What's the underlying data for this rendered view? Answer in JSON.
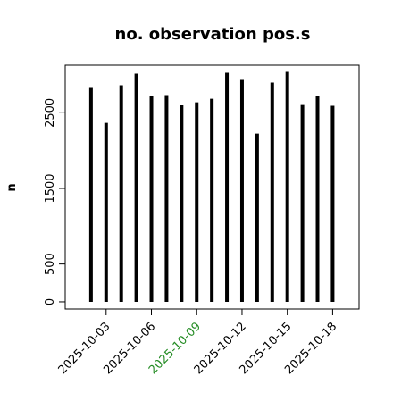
{
  "chart_data": {
    "type": "needle",
    "title": "no. observation pos.s",
    "y_label": "n",
    "x": [
      "2025-10-02",
      "2025-10-03",
      "2025-10-04",
      "2025-10-05",
      "2025-10-06",
      "2025-10-07",
      "2025-10-08",
      "2025-10-09",
      "2025-10-10",
      "2025-10-11",
      "2025-10-12",
      "2025-10-13",
      "2025-10-14",
      "2025-10-15",
      "2025-10-16",
      "2025-10-17",
      "2025-10-18"
    ],
    "values": [
      2840,
      2367,
      2864,
      3018,
      2722,
      2734,
      2604,
      2639,
      2686,
      3030,
      2935,
      2225,
      2899,
      3041,
      2615,
      2722,
      2592
    ],
    "color": "#000000",
    "xlim": [
      "2025-09-30T07:00",
      "2025-10-19T18:00"
    ],
    "xticks": [
      "2025-10-03",
      "2025-10-06",
      "2025-10-09",
      "2025-10-12",
      "2025-10-15",
      "2025-10-18"
    ],
    "xtick_colors": [
      "#000000",
      "#000000",
      "#228b22",
      "#000000",
      "#000000",
      "#000000"
    ],
    "ylim": [
      -95,
      3130
    ],
    "yticks": [
      0,
      500,
      1500,
      2500
    ]
  }
}
